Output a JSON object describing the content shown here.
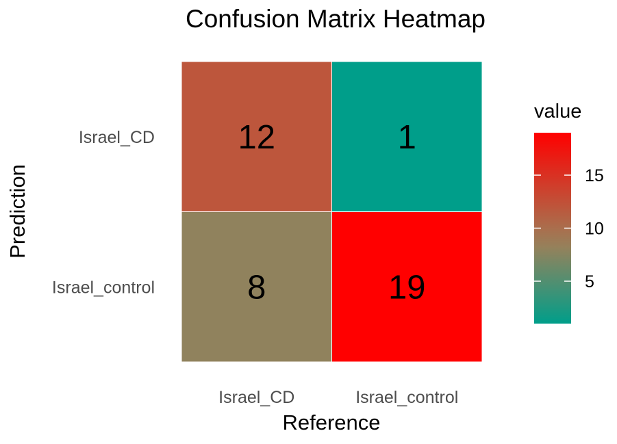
{
  "chart_data": {
    "type": "heatmap",
    "title": "Confusion Matrix Heatmap",
    "xlabel": "Reference",
    "ylabel": "Prediction",
    "x_categories": [
      "Israel_CD",
      "Israel_control"
    ],
    "y_categories": [
      "Israel_CD",
      "Israel_control"
    ],
    "values": [
      [
        12,
        1
      ],
      [
        8,
        19
      ]
    ],
    "legend": {
      "title": "value",
      "ticks": [
        5,
        10,
        15
      ],
      "range": [
        1,
        19
      ],
      "placement": "right",
      "low_color": "#009E8A",
      "high_color": "#FF0000"
    }
  }
}
